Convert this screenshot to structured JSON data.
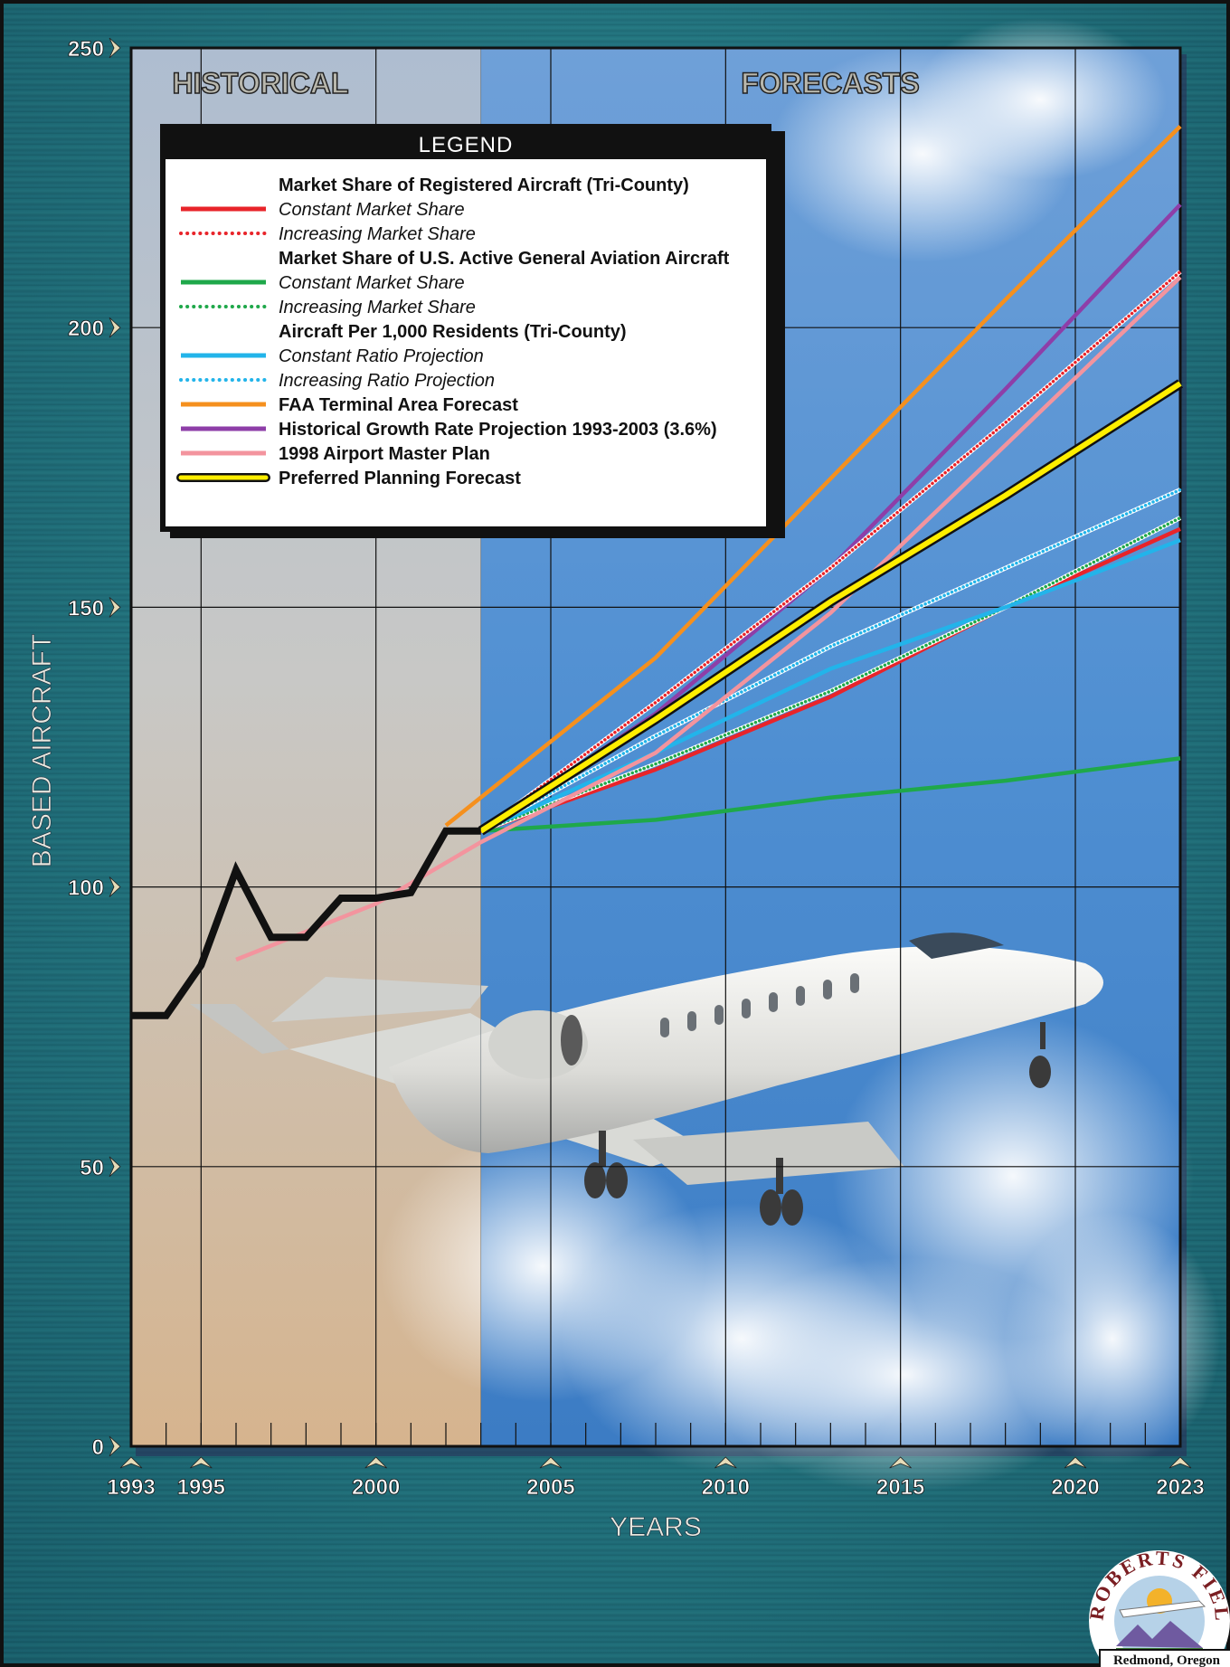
{
  "chart_data": {
    "type": "line",
    "title": "",
    "xlabel": "YEARS",
    "ylabel": "BASED AIRCRAFT",
    "xlim": [
      1993,
      2023
    ],
    "ylim": [
      0,
      250
    ],
    "x_ticks": [
      1993,
      1995,
      2000,
      2005,
      2010,
      2015,
      2020,
      2023
    ],
    "y_ticks": [
      0,
      50,
      100,
      150,
      200,
      250
    ],
    "grid": true,
    "historical_end": 2003,
    "section_labels": {
      "historical": "HISTORICAL",
      "forecasts": "FORECASTS"
    },
    "legend": {
      "title": "LEGEND",
      "placement": "top-left",
      "entries": [
        {
          "text": "Market Share of Registered Aircraft (Tri-County)",
          "kind": "header"
        },
        {
          "text": "Constant Market Share",
          "kind": "item",
          "series": 0
        },
        {
          "text": "Increasing Market Share",
          "kind": "item",
          "series": 1
        },
        {
          "text": "Market Share of U.S. Active General Aviation Aircraft",
          "kind": "header"
        },
        {
          "text": "Constant Market Share",
          "kind": "item",
          "series": 2
        },
        {
          "text": "Increasing Market Share",
          "kind": "item",
          "series": 3
        },
        {
          "text": "Aircraft Per 1,000 Residents (Tri-County)",
          "kind": "header"
        },
        {
          "text": "Constant Ratio Projection",
          "kind": "item",
          "series": 4
        },
        {
          "text": "Increasing Ratio Projection",
          "kind": "item",
          "series": 5
        },
        {
          "text": "FAA Terminal Area Forecast",
          "kind": "item-bold",
          "series": 6
        },
        {
          "text": "Historical Growth Rate Projection 1993-2003 (3.6%)",
          "kind": "item-bold",
          "series": 7
        },
        {
          "text": "1998 Airport Master Plan",
          "kind": "item-bold",
          "series": 8
        },
        {
          "text": "Preferred Planning Forecast",
          "kind": "item-bold",
          "series": 9
        }
      ]
    },
    "series": [
      {
        "color": "#e8242a",
        "style": "solid",
        "x": [
          2003,
          2008,
          2013,
          2018,
          2023
        ],
        "y": [
          110,
          121,
          134,
          150,
          164
        ]
      },
      {
        "color": "#e8242a",
        "style": "dotted",
        "x": [
          2003,
          2008,
          2013,
          2018,
          2023
        ],
        "y": [
          110,
          133,
          157,
          183,
          210
        ]
      },
      {
        "color": "#1fa84a",
        "style": "solid",
        "x": [
          2003,
          2008,
          2013,
          2018,
          2023
        ],
        "y": [
          110,
          112,
          116,
          119,
          123
        ]
      },
      {
        "color": "#1fa84a",
        "style": "dotted",
        "x": [
          2003,
          2008,
          2013,
          2018,
          2023
        ],
        "y": [
          110,
          122,
          135,
          150,
          166
        ]
      },
      {
        "color": "#22b4ea",
        "style": "solid",
        "x": [
          2003,
          2008,
          2013,
          2018,
          2023
        ],
        "y": [
          110,
          124,
          139,
          150,
          162
        ]
      },
      {
        "color": "#22b4ea",
        "style": "dotted",
        "x": [
          2003,
          2008,
          2013,
          2018,
          2023
        ],
        "y": [
          110,
          127,
          143,
          157,
          171
        ]
      },
      {
        "color": "#f5901e",
        "style": "solid",
        "x": [
          2002,
          2008,
          2013,
          2018,
          2023
        ],
        "y": [
          111,
          141,
          173,
          205,
          236
        ]
      },
      {
        "color": "#8e3ea8",
        "style": "solid",
        "x": [
          2003,
          2008,
          2013,
          2018,
          2023
        ],
        "y": [
          110,
          131,
          157,
          189,
          222
        ]
      },
      {
        "color": "#f3949e",
        "style": "solid",
        "x": [
          1996,
          2000,
          2003,
          2008,
          2013,
          2018,
          2023
        ],
        "y": [
          87,
          97,
          108,
          124,
          149,
          179,
          209
        ]
      },
      {
        "color": "#ffee00",
        "style": "outlined",
        "x": [
          2003,
          2008,
          2013,
          2018,
          2023
        ],
        "y": [
          110,
          130,
          151,
          170,
          190
        ]
      }
    ],
    "historical_series": {
      "color": "#111111",
      "x": [
        1993,
        1994,
        1995,
        1996,
        1997,
        1998,
        1999,
        2000,
        2001,
        2002,
        2003
      ],
      "y": [
        77,
        77,
        86,
        103,
        91,
        91,
        98,
        98,
        99,
        110,
        110
      ]
    }
  },
  "logo": {
    "ring_text": "ROBERTS FIELD",
    "location": "Redmond, Oregon"
  }
}
